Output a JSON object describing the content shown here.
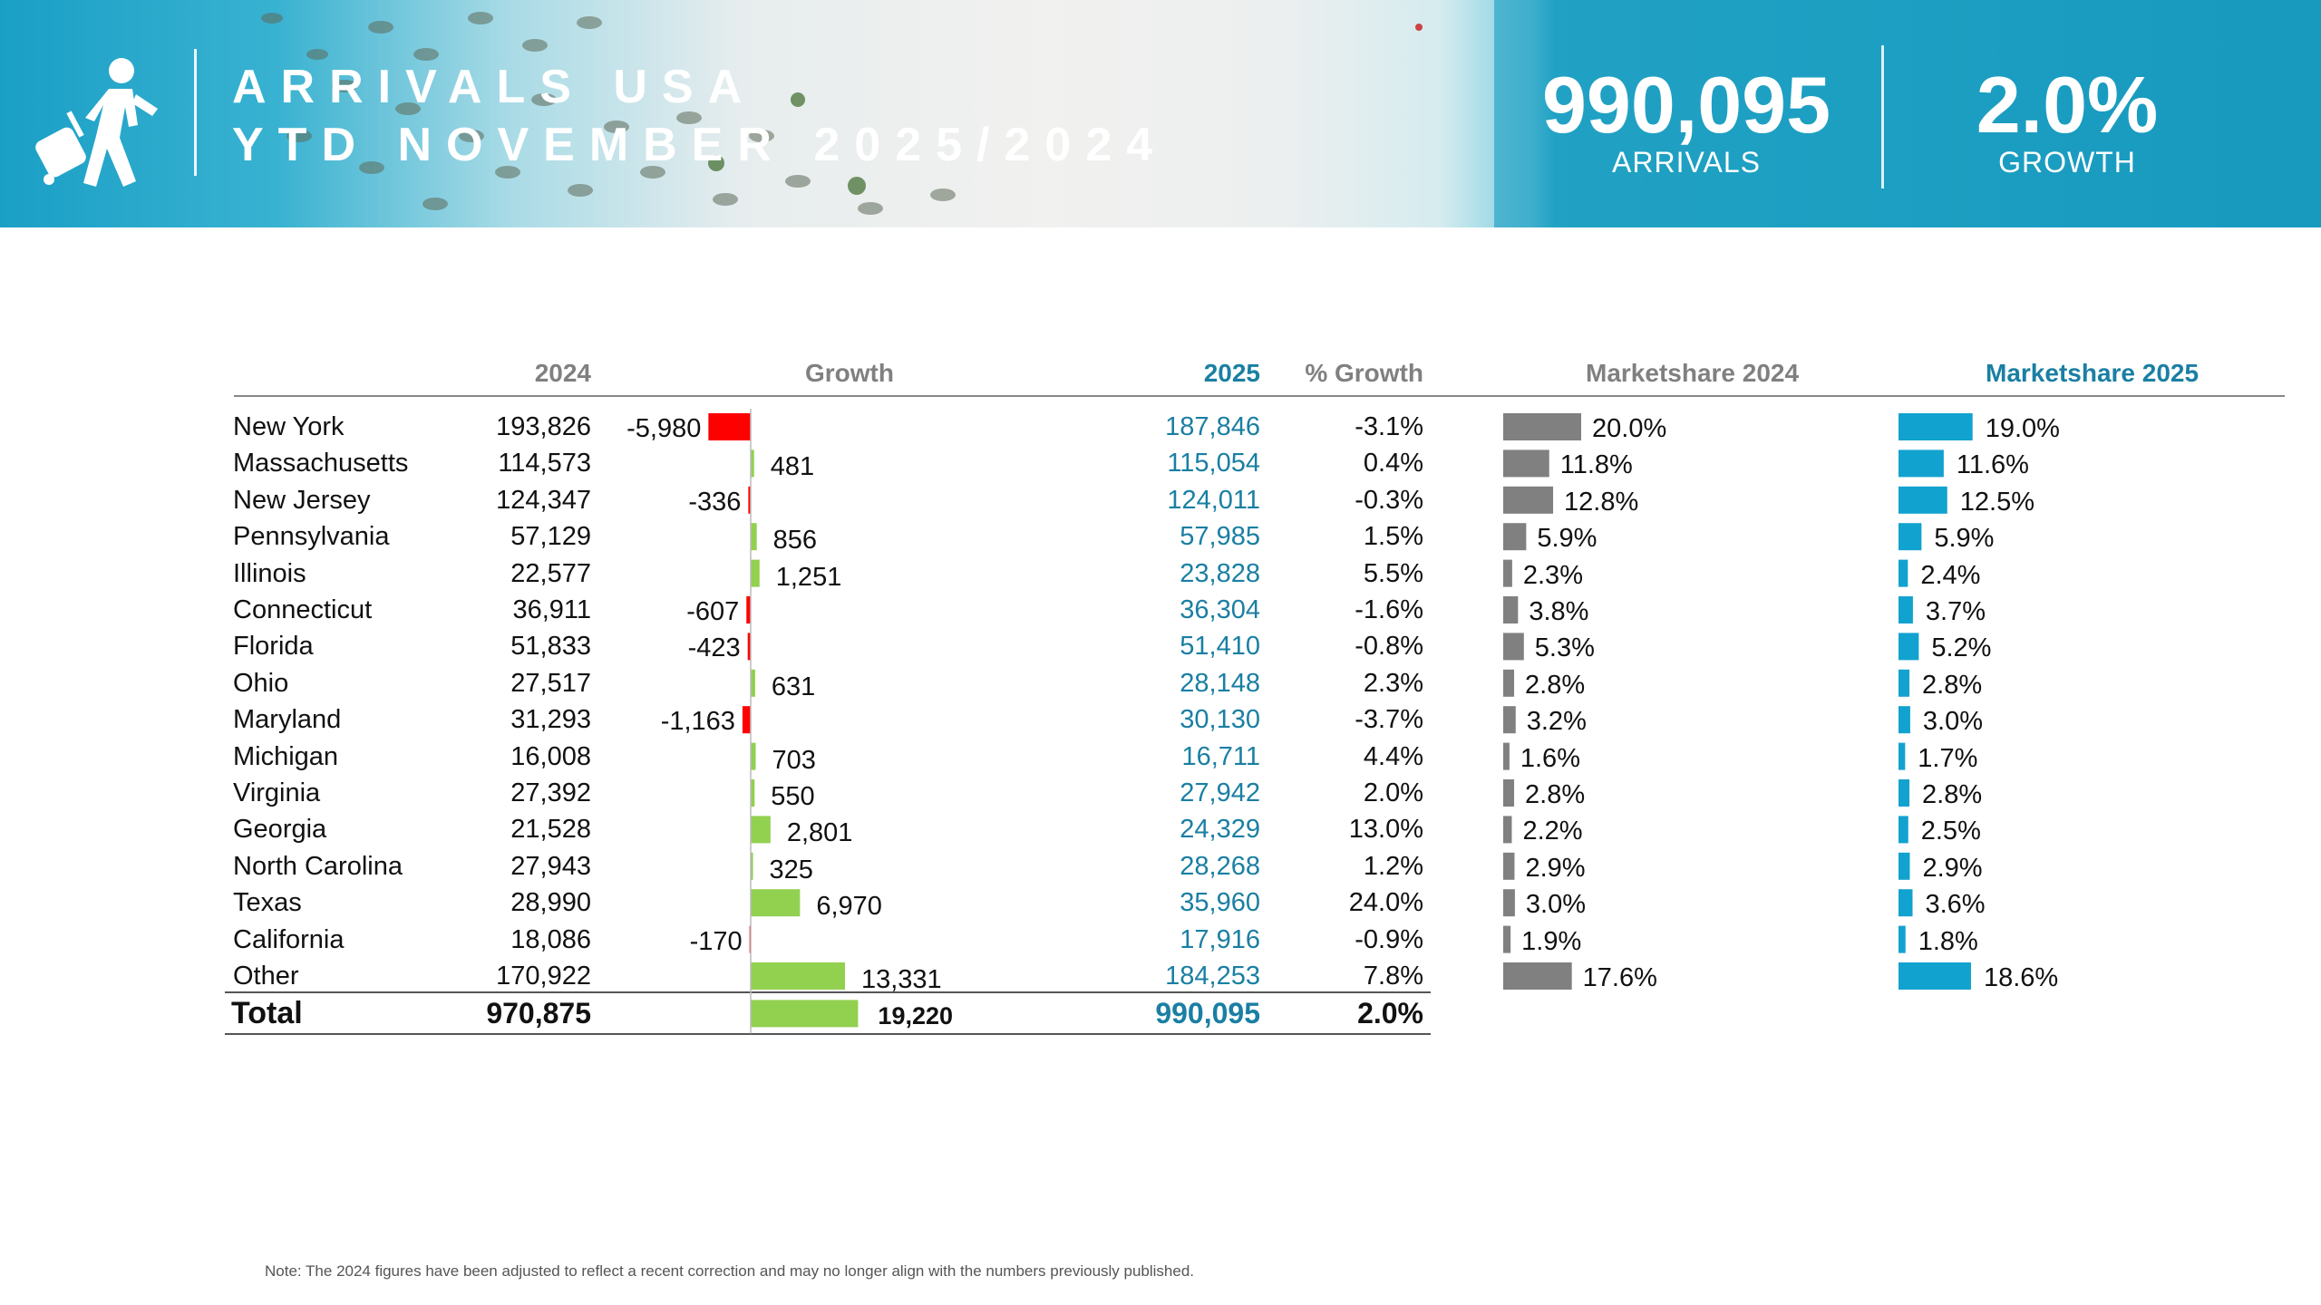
{
  "banner": {
    "title_line1": "ARRIVALS USA",
    "title_line2": "YTD NOVEMBER 2025/2024",
    "kpi_arrivals_value": "990,095",
    "kpi_arrivals_label": "ARRIVALS",
    "kpi_growth_value": "2.0%",
    "kpi_growth_label": "GROWTH",
    "icon": "traveler-with-suitcase-icon"
  },
  "headers": {
    "y2024": "2024",
    "growth": "Growth",
    "y2025": "2025",
    "pct_growth": "% Growth",
    "ms2024": "Marketshare 2024",
    "ms2025": "Marketshare 2025"
  },
  "colors": {
    "positive": "#92d050",
    "negative": "#ff0000",
    "ms2024": "#808080",
    "ms2025": "#12a2cf",
    "accent": "#1a7fa3"
  },
  "chart_data": {
    "type": "table",
    "title": "ARRIVALS USA YTD NOVEMBER 2025/2024",
    "rows": [
      {
        "state": "New York",
        "y2024": "193,826",
        "growth": -5980,
        "growth_label": "-5,980",
        "y2025": "187,846",
        "pct": "-3.1%",
        "ms2024": 20.0,
        "ms2024_label": "20.0%",
        "ms2025": 19.0,
        "ms2025_label": "19.0%"
      },
      {
        "state": "Massachusetts",
        "y2024": "114,573",
        "growth": 481,
        "growth_label": "481",
        "y2025": "115,054",
        "pct": "0.4%",
        "ms2024": 11.8,
        "ms2024_label": "11.8%",
        "ms2025": 11.6,
        "ms2025_label": "11.6%"
      },
      {
        "state": "New Jersey",
        "y2024": "124,347",
        "growth": -336,
        "growth_label": "-336",
        "y2025": "124,011",
        "pct": "-0.3%",
        "ms2024": 12.8,
        "ms2024_label": "12.8%",
        "ms2025": 12.5,
        "ms2025_label": "12.5%"
      },
      {
        "state": "Pennsylvania",
        "y2024": "57,129",
        "growth": 856,
        "growth_label": "856",
        "y2025": "57,985",
        "pct": "1.5%",
        "ms2024": 5.9,
        "ms2024_label": "5.9%",
        "ms2025": 5.9,
        "ms2025_label": "5.9%"
      },
      {
        "state": "Illinois",
        "y2024": "22,577",
        "growth": 1251,
        "growth_label": "1,251",
        "y2025": "23,828",
        "pct": "5.5%",
        "ms2024": 2.3,
        "ms2024_label": "2.3%",
        "ms2025": 2.4,
        "ms2025_label": "2.4%"
      },
      {
        "state": "Connecticut",
        "y2024": "36,911",
        "growth": -607,
        "growth_label": "-607",
        "y2025": "36,304",
        "pct": "-1.6%",
        "ms2024": 3.8,
        "ms2024_label": "3.8%",
        "ms2025": 3.7,
        "ms2025_label": "3.7%"
      },
      {
        "state": "Florida",
        "y2024": "51,833",
        "growth": -423,
        "growth_label": "-423",
        "y2025": "51,410",
        "pct": "-0.8%",
        "ms2024": 5.3,
        "ms2024_label": "5.3%",
        "ms2025": 5.2,
        "ms2025_label": "5.2%"
      },
      {
        "state": "Ohio",
        "y2024": "27,517",
        "growth": 631,
        "growth_label": "631",
        "y2025": "28,148",
        "pct": "2.3%",
        "ms2024": 2.8,
        "ms2024_label": "2.8%",
        "ms2025": 2.8,
        "ms2025_label": "2.8%"
      },
      {
        "state": "Maryland",
        "y2024": "31,293",
        "growth": -1163,
        "growth_label": "-1,163",
        "y2025": "30,130",
        "pct": "-3.7%",
        "ms2024": 3.2,
        "ms2024_label": "3.2%",
        "ms2025": 3.0,
        "ms2025_label": "3.0%"
      },
      {
        "state": "Michigan",
        "y2024": "16,008",
        "growth": 703,
        "growth_label": "703",
        "y2025": "16,711",
        "pct": "4.4%",
        "ms2024": 1.6,
        "ms2024_label": "1.6%",
        "ms2025": 1.7,
        "ms2025_label": "1.7%"
      },
      {
        "state": "Virginia",
        "y2024": "27,392",
        "growth": 550,
        "growth_label": "550",
        "y2025": "27,942",
        "pct": "2.0%",
        "ms2024": 2.8,
        "ms2024_label": "2.8%",
        "ms2025": 2.8,
        "ms2025_label": "2.8%"
      },
      {
        "state": "Georgia",
        "y2024": "21,528",
        "growth": 2801,
        "growth_label": "2,801",
        "y2025": "24,329",
        "pct": "13.0%",
        "ms2024": 2.2,
        "ms2024_label": "2.2%",
        "ms2025": 2.5,
        "ms2025_label": "2.5%"
      },
      {
        "state": "North Carolina",
        "y2024": "27,943",
        "growth": 325,
        "growth_label": "325",
        "y2025": "28,268",
        "pct": "1.2%",
        "ms2024": 2.9,
        "ms2024_label": "2.9%",
        "ms2025": 2.9,
        "ms2025_label": "2.9%"
      },
      {
        "state": "Texas",
        "y2024": "28,990",
        "growth": 6970,
        "growth_label": "6,970",
        "y2025": "35,960",
        "pct": "24.0%",
        "ms2024": 3.0,
        "ms2024_label": "3.0%",
        "ms2025": 3.6,
        "ms2025_label": "3.6%"
      },
      {
        "state": "California",
        "y2024": "18,086",
        "growth": -170,
        "growth_label": "-170",
        "y2025": "17,916",
        "pct": "-0.9%",
        "ms2024": 1.9,
        "ms2024_label": "1.9%",
        "ms2025": 1.8,
        "ms2025_label": "1.8%"
      },
      {
        "state": "Other",
        "y2024": "170,922",
        "growth": 13331,
        "growth_label": "13,331",
        "y2025": "184,253",
        "pct": "7.8%",
        "ms2024": 17.6,
        "ms2024_label": "17.6%",
        "ms2025": 18.6,
        "ms2025_label": "18.6%"
      }
    ],
    "total": {
      "state": "Total",
      "y2024": "970,875",
      "growth": 19220,
      "growth_label": "19,220",
      "y2025": "990,095",
      "pct": "2.0%"
    }
  },
  "note": "Note: The 2024 figures have been adjusted to reflect a recent correction and may no longer align with the numbers previously published."
}
